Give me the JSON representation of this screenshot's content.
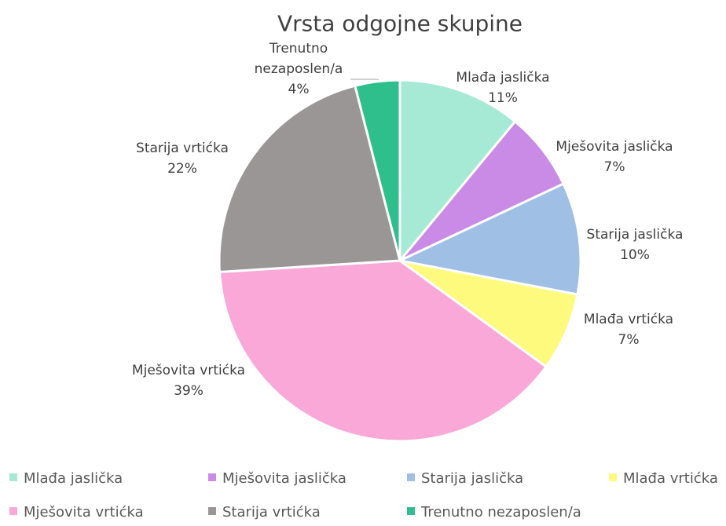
{
  "chart_data": {
    "type": "pie",
    "title": "Vrsta odgojne skupine",
    "categories": [
      "Mlađa jaslička",
      "Mješovita jaslička",
      "Starija jaslička",
      "Mlađa vrtićka",
      "Mješovita vrtićka",
      "Starija vrtićka",
      "Trenutno nezaposlen/a"
    ],
    "values": [
      11,
      7,
      10,
      7,
      39,
      22,
      4
    ],
    "value_labels": [
      "11%",
      "7%",
      "10%",
      "7%",
      "39%",
      "22%",
      "4%"
    ],
    "colors": [
      "#a6e9d5",
      "#c98be6",
      "#9fbfe5",
      "#fdfa7e",
      "#f9a8d8",
      "#9a9696",
      "#2ebf8c"
    ],
    "legend": "bottom"
  }
}
